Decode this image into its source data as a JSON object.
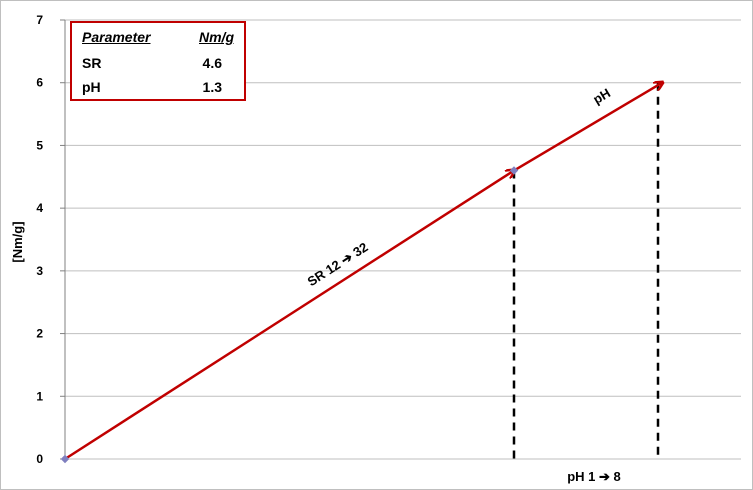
{
  "chart_data": {
    "type": "line",
    "ylabel": "[Nm/g]",
    "ylim": [
      0,
      7
    ],
    "y_ticks": [
      "0",
      "1",
      "2",
      "3",
      "4",
      "5",
      "6",
      "7"
    ],
    "grid": true,
    "series": [
      {
        "name": "SR 12 ➔ 32",
        "points": [
          {
            "x": 0,
            "y": 0
          },
          {
            "x": 1,
            "y": 4.6
          }
        ]
      },
      {
        "name": "pH",
        "points": [
          {
            "x": 1,
            "y": 4.6
          },
          {
            "x": 1.33,
            "y": 6.0
          }
        ]
      }
    ],
    "annotations": {
      "x_label_below": "pH 1 ➔ 8"
    },
    "legend_table": {
      "header": [
        "Parameter",
        "Nm/g"
      ],
      "rows": [
        [
          "SR",
          "4.6"
        ],
        [
          "pH",
          "1.3"
        ]
      ]
    },
    "colors": {
      "arrow": "#c00000",
      "grid": "#bfbfbf",
      "marker": "#7f7fbf"
    }
  }
}
